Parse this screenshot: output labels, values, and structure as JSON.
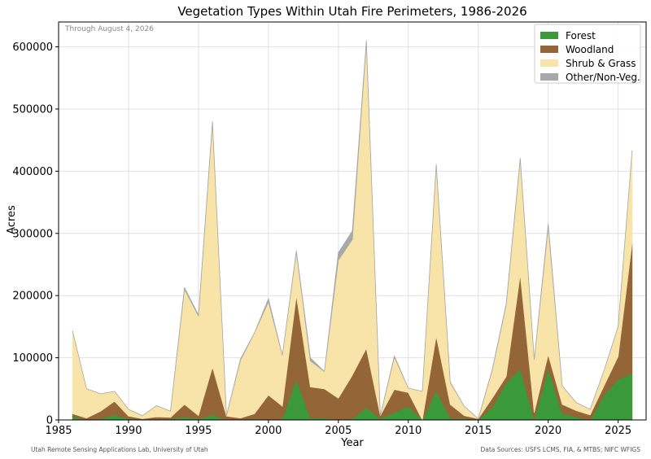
{
  "chart_data": {
    "type": "area",
    "stacked": true,
    "title": "Vegetation Types Within Utah Fire Perimeters, 1986-2026",
    "xlabel": "Year",
    "ylabel": "Acres",
    "xlim": [
      1985,
      2027
    ],
    "ylim": [
      0,
      640000
    ],
    "xticks": [
      1985,
      1990,
      1995,
      2000,
      2005,
      2010,
      2015,
      2020,
      2025
    ],
    "yticks": [
      0,
      100000,
      200000,
      300000,
      400000,
      500000,
      600000
    ],
    "grid": true,
    "legend_position": "top-right",
    "annotation": "Through August 4, 2026",
    "footer_left": "Utah Remote Sensing Applications Lab, University of Utah",
    "footer_right": "Data Sources: USFS LCMS, FIA, & MTBS; NIFC WFIGS",
    "x": [
      1986,
      1987,
      1988,
      1989,
      1990,
      1991,
      1992,
      1993,
      1994,
      1995,
      1996,
      1997,
      1998,
      1999,
      2000,
      2001,
      2002,
      2003,
      2004,
      2005,
      2006,
      2007,
      2008,
      2009,
      2010,
      2011,
      2012,
      2013,
      2014,
      2015,
      2016,
      2017,
      2018,
      2019,
      2020,
      2021,
      2022,
      2023,
      2024,
      2025,
      2026
    ],
    "series": [
      {
        "name": "Forest",
        "color": "#3a9a3a",
        "values": [
          5000,
          0,
          2000,
          8000,
          2000,
          1000,
          0,
          2000,
          5000,
          2000,
          8000,
          0,
          0,
          2000,
          0,
          2000,
          65000,
          3000,
          3000,
          0,
          2000,
          20000,
          2000,
          12000,
          22000,
          0,
          47000,
          3000,
          2000,
          0,
          20000,
          60000,
          82000,
          0,
          82000,
          10000,
          5000,
          0,
          40000,
          65000,
          75000
        ]
      },
      {
        "name": "Woodland",
        "color": "#946537",
        "values": [
          5000,
          3000,
          12000,
          22000,
          4000,
          1000,
          5000,
          2000,
          20000,
          5000,
          77000,
          6000,
          3000,
          8000,
          40000,
          20000,
          135000,
          50000,
          47000,
          35000,
          70000,
          95000,
          5000,
          37000,
          22000,
          0,
          88000,
          22000,
          5000,
          2000,
          15000,
          10000,
          152000,
          12000,
          23000,
          15000,
          10000,
          8000,
          15000,
          37000,
          210000
        ]
      },
      {
        "name": "Shrub & Grass",
        "color": "#f8e3a8",
        "values": [
          133000,
          47000,
          28000,
          16000,
          11000,
          5000,
          18000,
          10000,
          185000,
          160000,
          393000,
          1000,
          93000,
          130000,
          150000,
          82000,
          70000,
          42000,
          28000,
          222000,
          218000,
          492000,
          0,
          52000,
          7000,
          46000,
          275000,
          35000,
          15000,
          0,
          45000,
          115000,
          185000,
          85000,
          205000,
          30000,
          13000,
          9000,
          25000,
          48000,
          148000
        ]
      },
      {
        "name": "Other/Non-Veg.",
        "color": "#a8a8a8",
        "values": [
          0,
          0,
          0,
          0,
          0,
          0,
          0,
          0,
          3000,
          2000,
          2000,
          0,
          2000,
          0,
          5000,
          0,
          2000,
          5000,
          0,
          12000,
          14000,
          3000,
          0,
          2000,
          0,
          0,
          1000,
          1000,
          0,
          0,
          1000,
          2000,
          2000,
          0,
          5000,
          0,
          0,
          0,
          0,
          0,
          0
        ]
      }
    ]
  }
}
